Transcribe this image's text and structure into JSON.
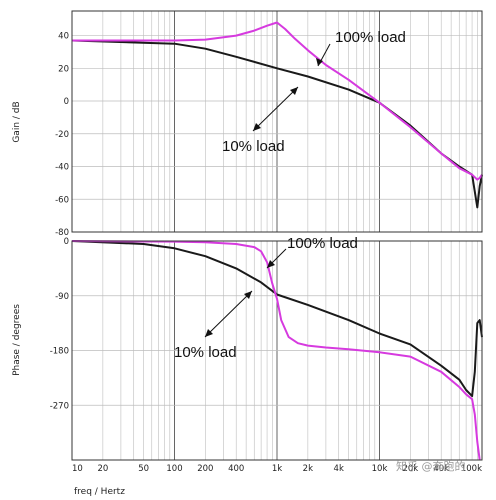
{
  "chart_data": [
    {
      "type": "line",
      "panel": "gain",
      "ylabel": "Gain / dB",
      "xscale": "log",
      "xlim": [
        10,
        100000
      ],
      "ylim": [
        -80,
        55
      ],
      "yticks": [
        40,
        20,
        0,
        -20,
        -40,
        -60,
        -80
      ],
      "grid": true,
      "colors": {
        "100% load": "#d63adf",
        "10% load": "#1a1a1a"
      },
      "series": [
        {
          "name": "100% load",
          "x": [
            10,
            100,
            200,
            400,
            600,
            800,
            1000,
            1200,
            1500,
            2000,
            3000,
            5000,
            10000,
            20000,
            40000,
            60000,
            80000,
            90000,
            95000,
            100000
          ],
          "y": [
            37,
            37,
            37.5,
            40,
            43,
            46,
            48,
            44,
            38,
            31,
            22,
            13,
            -1,
            -16,
            -32,
            -41,
            -45,
            -48,
            -47,
            -45
          ]
        },
        {
          "name": "10% load",
          "x": [
            10,
            100,
            200,
            400,
            1000,
            2000,
            5000,
            10000,
            20000,
            40000,
            60000,
            80000,
            90000,
            95000,
            100000
          ],
          "y": [
            37,
            35,
            32,
            27,
            20,
            15,
            7,
            -1,
            -15,
            -32,
            -40,
            -45,
            -65,
            -52,
            -45
          ]
        }
      ],
      "annotations": [
        {
          "text": "100% load",
          "target": "100% load"
        },
        {
          "text": "10% load",
          "target": "10% load"
        }
      ]
    },
    {
      "type": "line",
      "panel": "phase",
      "ylabel": "Phase / degrees",
      "xlabel": "freq / Hertz",
      "xscale": "log",
      "xlim": [
        10,
        100000
      ],
      "ylim": [
        -360,
        0
      ],
      "yticks": [
        0,
        -90,
        -180,
        -270
      ],
      "xticks": [
        "10",
        "20",
        "50",
        "100",
        "200",
        "400",
        "1k",
        "2k",
        "4k",
        "10k",
        "20k",
        "40k",
        "100k"
      ],
      "xtick_values": [
        10,
        20,
        50,
        100,
        200,
        400,
        1000,
        2000,
        4000,
        10000,
        20000,
        40000,
        100000
      ],
      "grid": true,
      "colors": {
        "100% load": "#d63adf",
        "10% load": "#1a1a1a"
      },
      "series": [
        {
          "name": "100% load",
          "x": [
            10,
            100,
            200,
            400,
            600,
            700,
            800,
            900,
            1000,
            1100,
            1300,
            1600,
            2000,
            3000,
            5000,
            10000,
            20000,
            40000,
            60000,
            70000,
            80000,
            85000,
            90000,
            95000
          ],
          "y": [
            0,
            -1,
            -2,
            -5,
            -10,
            -17,
            -35,
            -70,
            -95,
            -130,
            -158,
            -168,
            -172,
            -175,
            -178,
            -183,
            -190,
            -215,
            -240,
            -252,
            -260,
            -285,
            -330,
            -360
          ]
        },
        {
          "name": "10% load",
          "x": [
            10,
            50,
            100,
            200,
            400,
            700,
            1000,
            2000,
            5000,
            10000,
            20000,
            40000,
            60000,
            70000,
            80000,
            85000,
            90000,
            95000,
            100000
          ],
          "y": [
            0,
            -5,
            -12,
            -25,
            -45,
            -68,
            -88,
            -105,
            -130,
            -152,
            -170,
            -205,
            -228,
            -245,
            -255,
            -215,
            -135,
            -130,
            -158
          ]
        }
      ],
      "annotations": [
        {
          "text": "100% load",
          "target": "100% load"
        },
        {
          "text": "10% load",
          "target": "10% load"
        }
      ]
    }
  ],
  "labels": {
    "gain_ylabel": "Gain / dB",
    "phase_ylabel": "Phase / degrees",
    "xlabel": "freq / Hertz",
    "gain_annot_100": "100% load",
    "gain_annot_10": "10% load",
    "phase_annot_100": "100% load",
    "phase_annot_10": "10% load",
    "watermark": "知乎 @奔跑的"
  }
}
